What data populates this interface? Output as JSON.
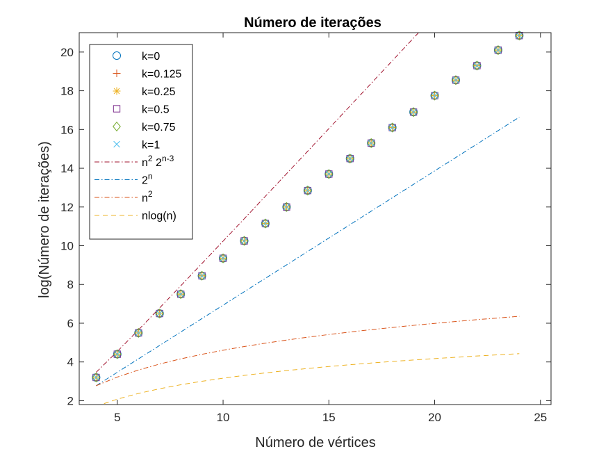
{
  "chart_data": {
    "type": "line",
    "title": "Número de iterações",
    "xlabel": "Número de vértices",
    "ylabel": "log(Número de iterações)",
    "xlim": [
      3.2,
      25.5
    ],
    "ylim": [
      1.8,
      21
    ],
    "xticks": [
      5,
      10,
      15,
      20,
      25
    ],
    "yticks": [
      2,
      4,
      6,
      8,
      10,
      12,
      14,
      16,
      18,
      20
    ],
    "grid": false,
    "legend_position": "top-left",
    "x": [
      4,
      5,
      6,
      7,
      8,
      9,
      10,
      11,
      12,
      13,
      14,
      15,
      16,
      17,
      18,
      19,
      20,
      21,
      22,
      23,
      24
    ],
    "marker_series": [
      {
        "name": "k=0",
        "marker": "circle",
        "color": "#0072BD",
        "values": [
          3.2,
          4.4,
          5.5,
          6.5,
          7.5,
          8.45,
          9.35,
          10.25,
          11.15,
          12.0,
          12.85,
          13.7,
          14.5,
          15.3,
          16.1,
          16.9,
          17.75,
          18.55,
          19.3,
          20.1,
          20.85
        ]
      },
      {
        "name": "k=0.125",
        "marker": "plus",
        "color": "#D95319",
        "values": [
          3.2,
          4.4,
          5.5,
          6.5,
          7.5,
          8.45,
          9.35,
          10.25,
          11.15,
          12.0,
          12.85,
          13.7,
          14.5,
          15.3,
          16.1,
          16.9,
          17.75,
          18.55,
          19.3,
          20.1,
          20.85
        ]
      },
      {
        "name": "k=0.25",
        "marker": "asterisk",
        "color": "#EDB120",
        "values": [
          3.2,
          4.4,
          5.5,
          6.5,
          7.5,
          8.45,
          9.35,
          10.25,
          11.15,
          12.0,
          12.85,
          13.7,
          14.5,
          15.3,
          16.1,
          16.9,
          17.75,
          18.55,
          19.3,
          20.1,
          20.85
        ]
      },
      {
        "name": "k=0.5",
        "marker": "square",
        "color": "#7E2F8E",
        "values": [
          3.2,
          4.4,
          5.5,
          6.5,
          7.5,
          8.45,
          9.35,
          10.25,
          11.15,
          12.0,
          12.85,
          13.7,
          14.5,
          15.3,
          16.1,
          16.9,
          17.75,
          18.55,
          19.3,
          20.1,
          20.85
        ]
      },
      {
        "name": "k=0.75",
        "marker": "diamond",
        "color": "#77AC30",
        "values": [
          3.2,
          4.4,
          5.5,
          6.5,
          7.5,
          8.45,
          9.35,
          10.25,
          11.15,
          12.0,
          12.85,
          13.7,
          14.5,
          15.3,
          16.1,
          16.9,
          17.75,
          18.55,
          19.3,
          20.1,
          20.85
        ]
      },
      {
        "name": "k=1",
        "marker": "x",
        "color": "#4DBEEE",
        "values": [
          3.2,
          4.4,
          5.5,
          6.5,
          7.5,
          8.45,
          9.35,
          10.25,
          11.15,
          12.0,
          12.85,
          13.7,
          14.5,
          15.3,
          16.1,
          16.9,
          17.75,
          18.55,
          19.3,
          20.1,
          20.85
        ]
      }
    ],
    "line_series": [
      {
        "name": "n^2 2^(n-3)",
        "label_base": "n",
        "label_exp1": "2",
        "label_mid": " 2",
        "label_exp2": "n-3",
        "style": "dashdot",
        "color": "#A2142F",
        "values": [
          3.4657,
          4.5407,
          5.6553,
          6.7881,
          7.9316,
          9.0816,
          10.2363,
          11.3942,
          12.5549,
          13.7177,
          14.882,
          16.0478,
          17.2146,
          18.3825,
          19.5511,
          20.7204,
          21.8903,
          23.0608,
          24.2317,
          25.4031,
          26.5749
        ]
      },
      {
        "name": "2^n",
        "label_base": "2",
        "label_exp1": "n",
        "style": "dashdot",
        "color": "#0072BD",
        "values": [
          2.7726,
          3.4657,
          4.1589,
          4.852,
          5.5452,
          6.2383,
          6.9315,
          7.6246,
          8.3178,
          9.0109,
          9.7041,
          10.3972,
          11.0904,
          11.7835,
          12.4766,
          13.1698,
          13.8629,
          14.5561,
          15.2492,
          15.9424,
          16.6355
        ]
      },
      {
        "name": "n^2",
        "label_base": "n",
        "label_exp1": "2",
        "style": "dashdot",
        "color": "#D95319",
        "values": [
          2.7726,
          3.2189,
          3.5835,
          3.8918,
          4.1589,
          4.3944,
          4.6052,
          4.7958,
          4.9698,
          5.1299,
          5.2781,
          5.4161,
          5.5452,
          5.6664,
          5.7807,
          5.8889,
          5.9915,
          6.089,
          6.1821,
          6.271,
          6.3561
        ]
      },
      {
        "name": "nlog(n)",
        "label_base": "nlog(n)",
        "style": "dashed",
        "color": "#EDB120",
        "values": [
          1.7128,
          2.0789,
          2.3749,
          2.6169,
          2.8232,
          3.0024,
          3.162,
          3.3054,
          3.4354,
          3.5539,
          3.6627,
          3.7632,
          3.8565,
          3.9436,
          4.025,
          4.1015,
          4.1738,
          4.2421,
          4.3069,
          4.3685,
          4.4272
        ]
      }
    ]
  }
}
